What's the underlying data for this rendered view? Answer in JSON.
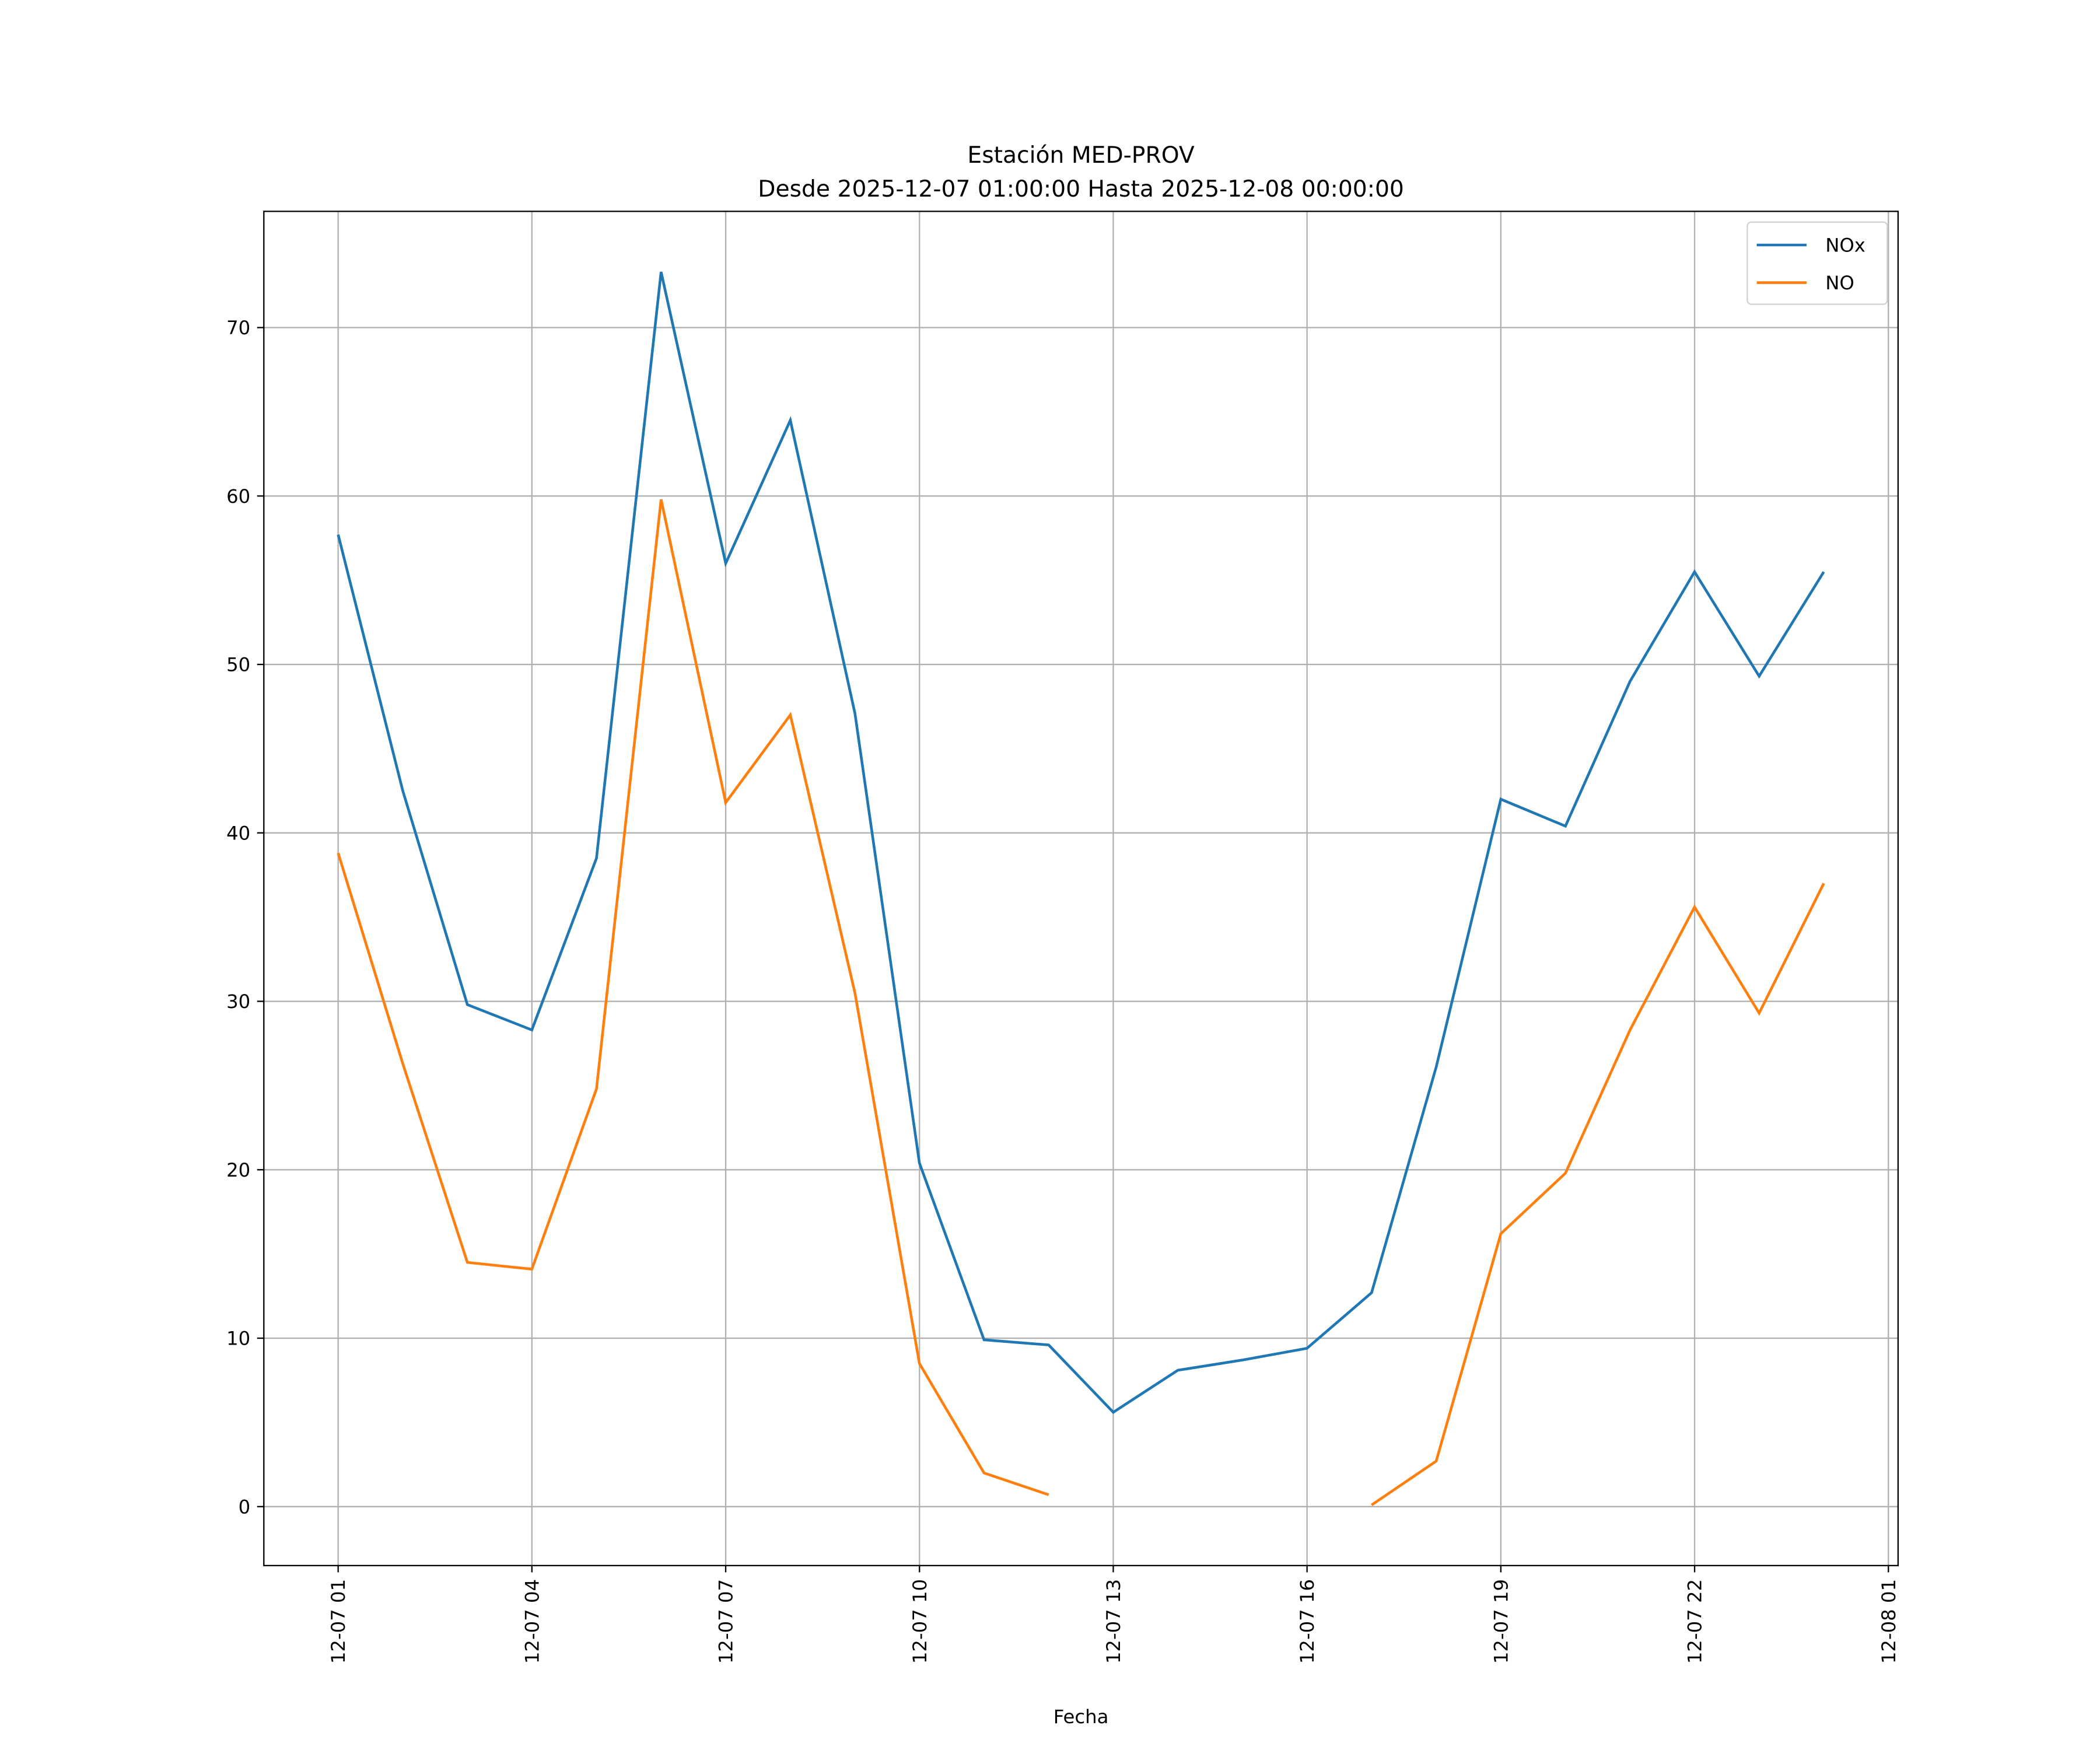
{
  "chart_data": {
    "type": "line",
    "title": "Estación MED-PROV",
    "subtitle": "Desde 2025-12-07 01:00:00 Hasta 2025-12-08 00:00:00",
    "xlabel": "Fecha",
    "ylabel": "",
    "x_hours_from_0701": [
      0,
      1,
      2,
      3,
      4,
      5,
      6,
      7,
      8,
      9,
      10,
      11,
      12,
      13,
      14,
      15,
      16,
      17,
      18,
      19,
      20,
      21,
      22,
      23
    ],
    "xlim_hours": [
      -1.15,
      24.15
    ],
    "ylim": [
      -3.5,
      76.9
    ],
    "xticks": [
      0,
      3,
      6,
      9,
      12,
      15,
      18,
      21,
      24
    ],
    "xtick_labels": [
      "12-07 01",
      "12-07 04",
      "12-07 07",
      "12-07 10",
      "12-07 13",
      "12-07 16",
      "12-07 19",
      "12-07 22",
      "12-08 01"
    ],
    "yticks": [
      0,
      10,
      20,
      30,
      40,
      50,
      60,
      70
    ],
    "ytick_labels": [
      "0",
      "10",
      "20",
      "30",
      "40",
      "50",
      "60",
      "70"
    ],
    "grid": true,
    "legend_position": "top-right",
    "series": [
      {
        "name": "NOx",
        "color": "#1f77b4",
        "values": [
          57.7,
          42.5,
          29.8,
          28.3,
          38.5,
          73.3,
          56.0,
          64.5,
          47.1,
          20.4,
          9.9,
          9.6,
          5.6,
          8.1,
          8.7,
          9.4,
          12.7,
          26.1,
          42.0,
          40.4,
          49.0,
          55.5,
          49.3,
          55.5
        ]
      },
      {
        "name": "NO",
        "color": "#ff7f0e",
        "values": [
          38.8,
          26.3,
          14.5,
          14.1,
          24.8,
          59.8,
          41.8,
          47.0,
          30.5,
          8.5,
          2.0,
          0.7,
          null,
          null,
          null,
          null,
          0.1,
          2.7,
          16.2,
          19.8,
          28.3,
          35.6,
          29.3,
          37.0
        ]
      }
    ]
  }
}
